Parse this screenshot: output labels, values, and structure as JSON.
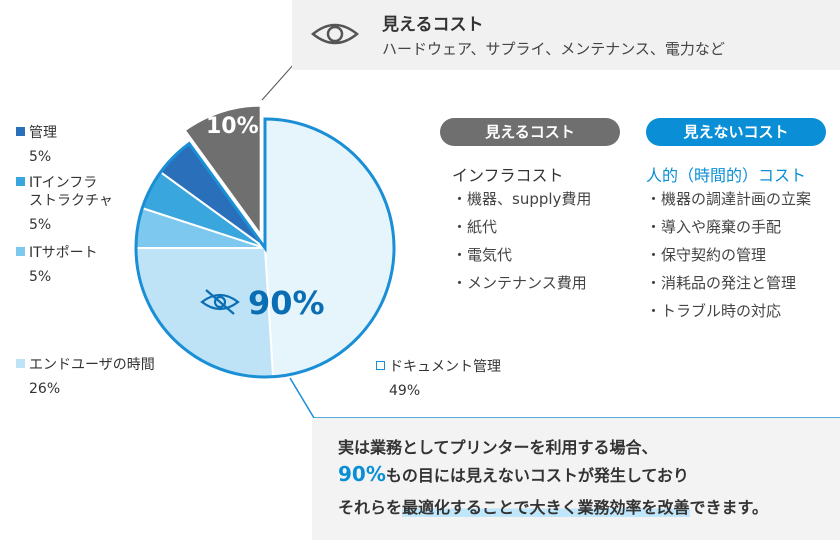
{
  "chart_data": {
    "type": "pie",
    "title": "",
    "slices": [
      {
        "label": "ドキュメント管理",
        "value": 49,
        "display": "49%",
        "color": "#e6f4fc"
      },
      {
        "label": "エンドユーザの時間",
        "value": 26,
        "display": "26%",
        "color": "#bfe3f6"
      },
      {
        "label": "ITサポート",
        "value": 5,
        "display": "5%",
        "color": "#7dc8ee"
      },
      {
        "label": "ITインフラストラクチャ",
        "value": 5,
        "display": "5%",
        "color": "#3aa6de"
      },
      {
        "label": "管理",
        "value": 5,
        "display": "5%",
        "color": "#2a6fba"
      },
      {
        "label": "見えるコスト",
        "value": 10,
        "display": "10%",
        "color": "#6f6f6f"
      }
    ],
    "annotations": {
      "hidden_share": "90%",
      "visible_share": "10%"
    }
  },
  "legend": {
    "kanri": {
      "label": "管理",
      "value": "5%"
    },
    "it_infra": {
      "label_line1": "ITインフラ",
      "label_line2": "ストラクチャ",
      "value": "5%"
    },
    "it_support": {
      "label": "ITサポート",
      "value": "5%"
    },
    "end_user": {
      "label": "エンドユーザの時間",
      "value": "26%"
    },
    "document": {
      "label": "ドキュメント管理",
      "value": "49%"
    }
  },
  "top_callout": {
    "title": "見えるコスト",
    "subtitle": "ハードウェア、サプライ、メンテナンス、電力など",
    "icon": "eye-icon"
  },
  "visible_col": {
    "pill": "見えるコスト",
    "heading": "インフラコスト",
    "items": [
      "・機器、supply費用",
      "・紙代",
      "・電気代",
      "・メンテナンス費用"
    ]
  },
  "invisible_col": {
    "pill": "見えないコスト",
    "heading": "人的（時間的）コスト",
    "items": [
      "・機器の調達計画の立案",
      "・導入や廃棄の手配",
      "・保守契約の管理",
      "・消耗品の発注と管理",
      "・トラブル時の対応"
    ]
  },
  "bottom_callout": {
    "line1": "実は業務としてプリンターを利用する場合、",
    "line2_accent": "90%",
    "line2_rest": "もの目には見えないコストが発生しており",
    "line3_pre": "それらを",
    "line3_hl": "最適化することで大きく業務効率を改善",
    "line3_post": "できます。"
  },
  "colors": {
    "accent_blue": "#0a8fd6",
    "gray_pill": "#6f6f6f",
    "ring_blue": "#1a8fd6"
  }
}
